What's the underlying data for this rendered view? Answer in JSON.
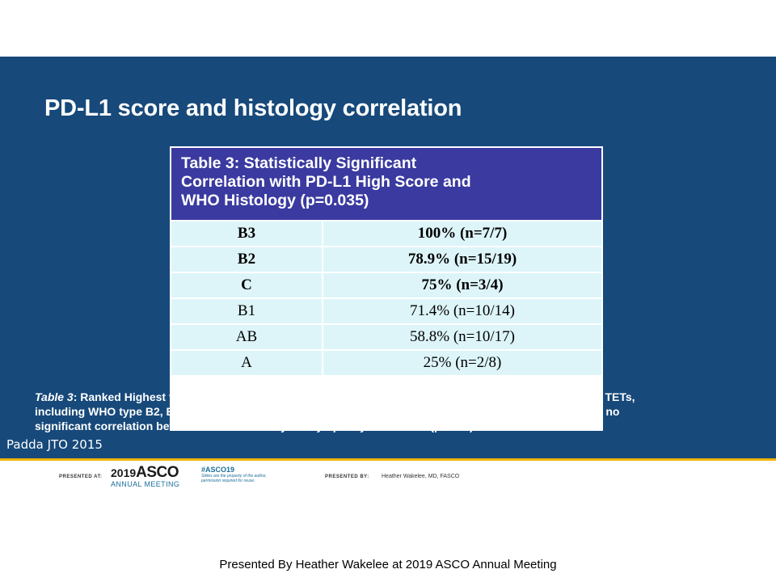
{
  "slide": {
    "title": "PD-L1 score and histology correlation",
    "table": {
      "header_lines": [
        "Table 3: Statistically Significant",
        "Correlation with PD-L1 High Score and",
        "WHO Histology (p=0.035)"
      ],
      "rows": [
        {
          "histology": "B3",
          "value": "100% (n=7/7)",
          "bold": true
        },
        {
          "histology": "B2",
          "value": "78.9% (n=15/19)",
          "bold": true
        },
        {
          "histology": "C",
          "value": "75%  (n=3/4)",
          "bold": true
        },
        {
          "histology": "B1",
          "value": "71.4% (n=10/14)",
          "bold": false
        },
        {
          "histology": "AB",
          "value": "58.8% (n=10/17)",
          "bold": false
        },
        {
          "histology": "A",
          "value": "25% (n=2/8)",
          "bold": false
        }
      ]
    },
    "caption": {
      "lead": "Table 3",
      "line1": ": Ranked Highest to Lowest. PD-L1 high scores are found more frequently ( ",
      "ge_symbol": ">",
      "line1_end": " 75%) in higher grade TETs,",
      "line2": "including WHO type B2, B3, & C. B3 and C histologies tend to have less lymphocytes; however, there was no",
      "line3": "significant correlation between PD-L1 intensity and lymphocytic infiltrate (p=0.31)"
    },
    "citation": "Padda JTO 2015"
  },
  "footer": {
    "presented_at_label": "PRESENTED AT:",
    "asco_year": "2019",
    "asco_name": "ASCO",
    "asco_sub": "ANNUAL MEETING",
    "hashtag": "#ASCO19",
    "rights_line1": "Slides are the property of the author,",
    "rights_line2": "permission required for reuse.",
    "presented_by_label": "PRESENTED BY:",
    "presenter": "Heather Wakelee, MD, FASCO"
  },
  "bottom_caption": "Presented By Heather Wakelee at 2019 ASCO Annual Meeting",
  "colors": {
    "slide_background": "#17497a",
    "table_header": "#3a3aa0",
    "table_cell": "#ddf5f9",
    "accent_stripe": "#f0b400"
  }
}
